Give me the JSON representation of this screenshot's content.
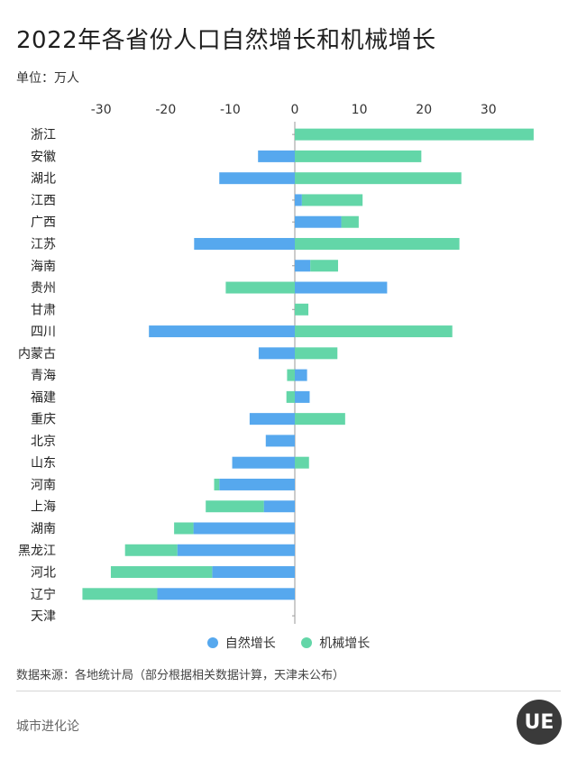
{
  "title": "2022年各省份人口自然增长和机械增长",
  "unit_label": "单位：万人",
  "source": "数据来源：各地统计局（部分根据相关数据计算，天津未公布）",
  "brand": "城市进化论",
  "logo_text": "UE",
  "colors": {
    "natural": "#56A8EE",
    "mechanical": "#63D6A8",
    "axis": "#9a9a9a"
  },
  "chart_data": {
    "type": "bar",
    "orientation": "horizontal",
    "stacked": true,
    "xlim": [
      -33,
      40
    ],
    "xticks": [
      -30,
      -20,
      -10,
      0,
      10,
      20,
      30
    ],
    "xtick_labels": [
      "-30",
      "-20",
      "-10",
      "0",
      "10",
      "20",
      "30"
    ],
    "categories": [
      "浙江",
      "安徽",
      "湖北",
      "江西",
      "广西",
      "江苏",
      "海南",
      "贵州",
      "甘肃",
      "四川",
      "内蒙古",
      "青海",
      "福建",
      "重庆",
      "北京",
      "山东",
      "河南",
      "上海",
      "湖南",
      "黑龙江",
      "河北",
      "辽宁",
      "天津"
    ],
    "series": [
      {
        "name": "自然增长",
        "values": [
          0,
          -5.7,
          -11.7,
          1.1,
          7.2,
          -15.6,
          2.4,
          14.3,
          0,
          -22.6,
          -5.6,
          1.9,
          2.3,
          -7.0,
          -4.5,
          -9.7,
          -11.7,
          -4.8,
          -15.7,
          -18.2,
          -12.8,
          -21.3,
          0
        ]
      },
      {
        "name": "机械增长",
        "values": [
          37.0,
          19.6,
          25.8,
          9.4,
          2.7,
          25.5,
          4.3,
          -10.7,
          2.1,
          24.4,
          6.6,
          -1.2,
          -1.3,
          7.8,
          0,
          2.2,
          -0.8,
          -9.0,
          -3.0,
          -8.1,
          -15.7,
          -11.6,
          0
        ]
      }
    ],
    "legend_position": "bottom"
  }
}
